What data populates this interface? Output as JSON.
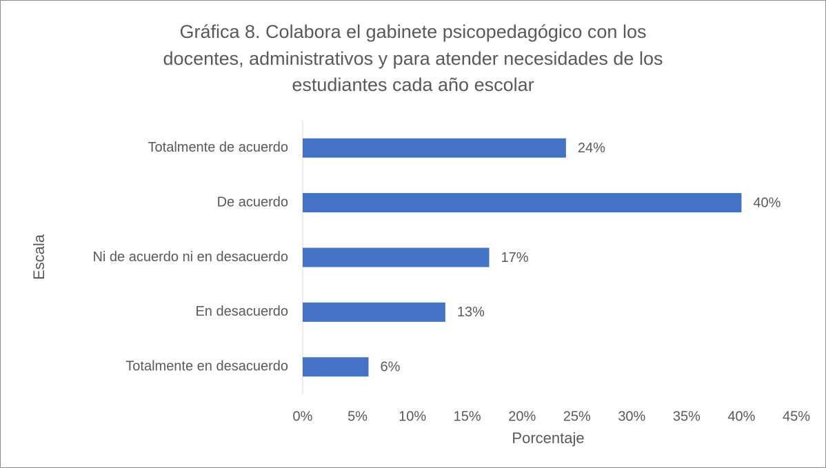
{
  "chart_data": {
    "type": "bar",
    "orientation": "horizontal",
    "title": [
      "Gráfica 8. Colabora el gabinete psicopedagógico con los",
      "docentes, administrativos y para atender necesidades de los",
      "estudiantes cada año escolar"
    ],
    "categories": [
      "Totalmente de acuerdo",
      "De acuerdo",
      "Ni de acuerdo ni en desacuerdo",
      "En desacuerdo",
      "Totalmente en desacuerdo"
    ],
    "values": [
      24,
      40,
      17,
      13,
      6
    ],
    "value_labels": [
      "24%",
      "40%",
      "17%",
      "13%",
      "6%"
    ],
    "color": "#4472c4",
    "x_label": "Porcentaje",
    "y_label": "Escala",
    "xlim": [
      0,
      45
    ],
    "xticks": [
      {
        "value": 0,
        "label": "0%"
      },
      {
        "value": 5,
        "label": "5%"
      },
      {
        "value": 10,
        "label": "10%"
      },
      {
        "value": 15,
        "label": "15%"
      },
      {
        "value": 20,
        "label": "20%"
      },
      {
        "value": 25,
        "label": "25%"
      },
      {
        "value": 30,
        "label": "30%"
      },
      {
        "value": 35,
        "label": "35%"
      },
      {
        "value": 40,
        "label": "40%"
      },
      {
        "value": 45,
        "label": "45%"
      }
    ],
    "grid": false
  }
}
